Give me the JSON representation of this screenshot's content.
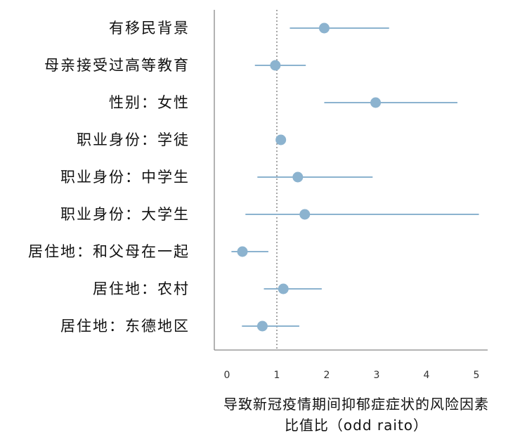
{
  "chart_data": {
    "type": "forest",
    "categories": [
      "有移民背景",
      "母亲接受过高等教育",
      "性别：女性",
      "职业身份：学徒",
      "职业身份：中学生",
      "职业身份：大学生",
      "居住地：和父母在一起",
      "居住地：农村",
      "居住地：东德地区"
    ],
    "estimates": [
      1.95,
      0.97,
      2.98,
      1.08,
      1.42,
      1.56,
      0.31,
      1.13,
      0.71
    ],
    "ci_low": [
      1.26,
      0.56,
      1.95,
      1.08,
      0.61,
      0.37,
      0.09,
      0.74,
      0.3
    ],
    "ci_high": [
      3.25,
      1.58,
      4.62,
      1.08,
      2.92,
      5.05,
      0.83,
      1.9,
      1.45
    ],
    "reference_line": 1,
    "xlim": [
      -0.2,
      5.3
    ],
    "xticks": [
      "0",
      "1",
      "2",
      "3",
      "4",
      "5"
    ],
    "xlabel_line1": "导致新冠疫情期间抑郁症症状的风险因素",
    "xlabel_line2": "比值比（odd raito）",
    "grid": false,
    "colors": {
      "marker": "#8cb3cf",
      "whisker": "#8cb3cf",
      "axis": "#888888",
      "reference": "#777777"
    }
  }
}
